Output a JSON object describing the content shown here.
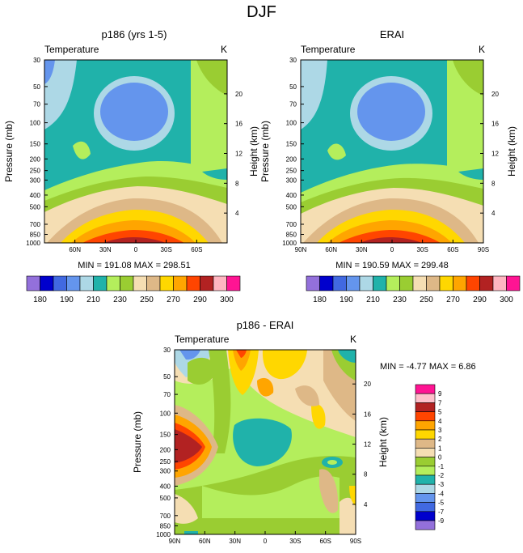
{
  "page_title": "DJF",
  "chart_data": [
    {
      "type": "heatmap",
      "title": "p186 (yrs 1-5)",
      "field_label": "Temperature",
      "units": "K",
      "ylabel": "Pressure (mb)",
      "y2label": "Height (km)",
      "pressure_ticks": [
        "30",
        "50",
        "70",
        "100",
        "150",
        "200",
        "250",
        "300",
        "400",
        "500",
        "700",
        "850",
        "1000"
      ],
      "height_ticks": [
        "20",
        "16",
        "12",
        "8",
        "4"
      ],
      "lat_ticks": [
        "60N",
        "30N",
        "0",
        "30S",
        "60S"
      ],
      "stats_text": "MIN = 191.08   MAX = 298.51",
      "stats": {
        "min": 191.08,
        "max": 298.51
      },
      "levels": [
        180,
        185,
        190,
        195,
        200,
        205,
        210,
        220,
        230,
        240,
        250,
        260,
        270,
        280,
        290,
        295,
        300
      ],
      "colorbar_labels": [
        "180",
        "190",
        "210",
        "230",
        "250",
        "270",
        "290",
        "300"
      ]
    },
    {
      "type": "heatmap",
      "title": "ERAI",
      "field_label": "Temperature",
      "units": "K",
      "ylabel": "Pressure (mb)",
      "y2label": "Height (km)",
      "pressure_ticks": [
        "30",
        "50",
        "70",
        "100",
        "150",
        "200",
        "250",
        "300",
        "400",
        "500",
        "700",
        "850",
        "1000"
      ],
      "height_ticks": [
        "20",
        "16",
        "12",
        "8",
        "4"
      ],
      "lat_ticks": [
        "90N",
        "60N",
        "30N",
        "0",
        "30S",
        "60S",
        "90S"
      ],
      "stats_text": "MIN = 190.59   MAX = 299.48",
      "stats": {
        "min": 190.59,
        "max": 299.48
      },
      "levels": [
        180,
        185,
        190,
        195,
        200,
        205,
        210,
        220,
        230,
        240,
        250,
        260,
        270,
        280,
        290,
        295,
        300
      ],
      "colorbar_labels": [
        "180",
        "190",
        "210",
        "230",
        "250",
        "270",
        "290",
        "300"
      ]
    },
    {
      "type": "heatmap",
      "title": "p186 - ERAI",
      "field_label": "Temperature",
      "units": "K",
      "ylabel": "Pressure (mb)",
      "y2label": "Height (km)",
      "pressure_ticks": [
        "30",
        "50",
        "70",
        "100",
        "150",
        "200",
        "250",
        "300",
        "400",
        "500",
        "700",
        "850",
        "1000"
      ],
      "height_ticks": [
        "20",
        "16",
        "12",
        "8",
        "4"
      ],
      "lat_ticks": [
        "90N",
        "60N",
        "30N",
        "0",
        "30S",
        "60S",
        "90S"
      ],
      "stats_text": "MIN =  -4.77   MAX =   6.86",
      "stats": {
        "min": -4.77,
        "max": 6.86
      },
      "levels": [
        -9,
        -7,
        -5,
        -4,
        -3,
        -2,
        -1,
        0,
        1,
        2,
        3,
        4,
        5,
        7,
        9
      ],
      "colorbar_labels": [
        "9",
        "7",
        "5",
        "4",
        "3",
        "2",
        "1",
        "0",
        "-1",
        "-2",
        "-3",
        "-4",
        "-5",
        "-7",
        "-9"
      ]
    }
  ],
  "colors": {
    "c1": "#9370db",
    "c2": "#0000cd",
    "c3": "#4169e1",
    "c4": "#6495ed",
    "c5": "#add8e6",
    "c6": "#20b2aa",
    "c7": "#b4ee5c",
    "c8": "#9acd32",
    "c9": "#f5deb3",
    "c10": "#deb887",
    "c11": "#ffd700",
    "c12": "#ffa500",
    "c13": "#ff4500",
    "c14": "#b22222",
    "c15": "#ffb6c1",
    "c16": "#ff1493",
    "d_pos9": "#ff1493",
    "d_pos7": "#ffc0cb",
    "d_pos5": "#b22222",
    "d_pos4": "#ff4500",
    "d_pos3": "#ffa500",
    "d_pos2": "#ffd700",
    "d_pos1": "#deb887",
    "d_0": "#f5deb3",
    "d_m1": "#9acd32",
    "d_m2": "#b4ee5c",
    "d_m3": "#20b2aa",
    "d_m4": "#add8e6",
    "d_m5": "#6495ed",
    "d_m7": "#4169e1",
    "d_m9": "#0000cd",
    "d_low": "#9370db"
  }
}
